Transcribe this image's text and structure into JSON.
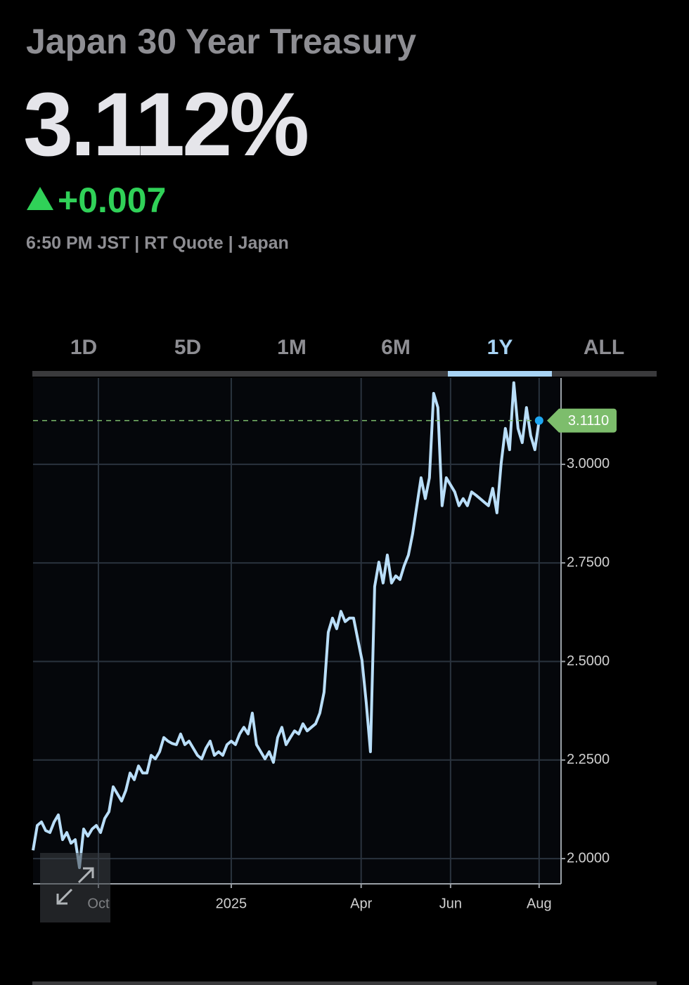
{
  "header": {
    "title": "Japan 30 Year Treasury",
    "price": "3.112%",
    "change": "+0.007",
    "meta": "6:50 PM JST | RT Quote | Japan"
  },
  "tabs": {
    "items": [
      "1D",
      "5D",
      "1M",
      "6M",
      "1Y",
      "ALL"
    ],
    "selected": 4
  },
  "chart_data": {
    "type": "line",
    "series": [
      {
        "color": "#b9def9",
        "values": [
          2.021,
          2.084,
          2.093,
          2.071,
          2.066,
          2.093,
          2.111,
          2.048,
          2.066,
          2.039,
          2.048,
          1.977,
          2.075,
          2.057,
          2.075,
          2.084,
          2.066,
          2.102,
          2.119,
          2.182,
          2.164,
          2.146,
          2.173,
          2.217,
          2.2,
          2.235,
          2.217,
          2.217,
          2.262,
          2.253,
          2.271,
          2.307,
          2.298,
          2.292,
          2.289,
          2.316,
          2.289,
          2.298,
          2.28,
          2.262,
          2.253,
          2.28,
          2.298,
          2.262,
          2.271,
          2.262,
          2.289,
          2.298,
          2.289,
          2.316,
          2.333,
          2.316,
          2.369,
          2.289,
          2.271,
          2.253,
          2.271,
          2.244,
          2.307,
          2.333,
          2.289,
          2.307,
          2.324,
          2.316,
          2.342,
          2.324,
          2.333,
          2.342,
          2.369,
          2.422,
          2.574,
          2.61,
          2.583,
          2.627,
          2.601,
          2.61,
          2.61,
          2.556,
          2.503,
          2.396,
          2.271,
          2.69,
          2.752,
          2.699,
          2.77,
          2.699,
          2.717,
          2.708,
          2.743,
          2.77,
          2.824,
          2.895,
          2.966,
          2.913,
          2.966,
          3.18,
          3.144,
          2.895,
          2.966,
          2.948,
          2.93,
          2.895,
          2.913,
          2.895,
          2.93,
          2.922,
          2.913,
          2.904,
          2.895,
          2.939,
          2.877,
          3.002,
          3.091,
          3.037,
          3.207,
          3.091,
          3.055,
          3.144,
          3.073,
          3.037,
          3.111
        ]
      }
    ],
    "xlim": [
      0,
      125.2
    ],
    "xticks": [
      {
        "value": 15.5,
        "label": "Oct"
      },
      {
        "value": 47,
        "label": "2025"
      },
      {
        "value": 77.8,
        "label": "Apr"
      },
      {
        "value": 99,
        "label": "Jun"
      },
      {
        "value": 120,
        "label": "Aug"
      }
    ],
    "ylim": [
      1.936,
      3.219
    ],
    "yticks": [
      {
        "value": 2,
        "label": "2.0000"
      },
      {
        "value": 2.25,
        "label": "2.2500"
      },
      {
        "value": 2.5,
        "label": "2.5000"
      },
      {
        "value": 2.75,
        "label": "2.7500"
      },
      {
        "value": 3,
        "label": "3.0000"
      }
    ],
    "grid": true,
    "price_line": {
      "value": 3.111,
      "label": "3.1110",
      "color": "#7dbd6c"
    }
  }
}
